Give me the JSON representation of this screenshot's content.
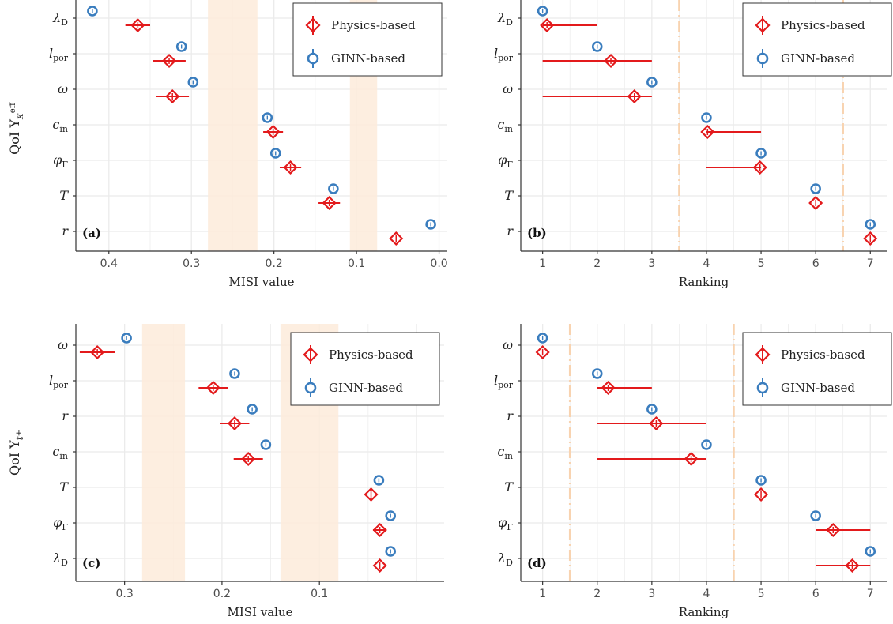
{
  "colors": {
    "physics": "#E31A1C",
    "ginn": "#3A7DBE",
    "band": "#FDEBDB",
    "cutoff": "#F8D3B0",
    "grid": "#EBEBEB",
    "axis": "#333333"
  },
  "legend": {
    "physics": "Physics-based",
    "ginn": "GINN-based"
  },
  "row_labels": {
    "top": "QoI Y",
    "top_sub": "κ",
    "top_sup": "eff",
    "bottom": "QoI Y",
    "bottom_sub": "t",
    "bottom_sub2": "+"
  },
  "chart_data": [
    {
      "panel": "(a)",
      "type": "scatter",
      "xlabel": "MISI value",
      "x_reversed": true,
      "xlim": [
        0.44,
        -0.01
      ],
      "xticks": [
        0.4,
        0.3,
        0.2,
        0.1,
        0.0
      ],
      "xtick_labels": [
        "0.4",
        "0.3",
        "0.2",
        "0.1",
        "0.0"
      ],
      "categories": [
        "λD",
        "lpor",
        "ω",
        "cin",
        "φΓ",
        "T",
        "r"
      ],
      "shaded_bands": [
        [
          0.22,
          0.28
        ],
        [
          0.075,
          0.108
        ]
      ],
      "series": [
        {
          "name": "Physics-based",
          "marker": "diamond",
          "values": [
            0.365,
            0.327,
            0.323,
            0.201,
            0.18,
            0.133,
            0.052
          ],
          "err_low": [
            0.35,
            0.307,
            0.303,
            0.189,
            0.167,
            0.12,
            0.052
          ],
          "err_high": [
            0.38,
            0.347,
            0.343,
            0.213,
            0.193,
            0.146,
            0.052
          ]
        },
        {
          "name": "GINN-based",
          "marker": "circle",
          "values": [
            0.42,
            0.312,
            0.298,
            0.208,
            0.198,
            0.128,
            0.01
          ]
        }
      ]
    },
    {
      "panel": "(b)",
      "type": "scatter",
      "xlabel": "Ranking",
      "x_reversed": false,
      "xlim": [
        0.6,
        7.3
      ],
      "xticks": [
        1,
        2,
        3,
        4,
        5,
        6,
        7
      ],
      "xtick_labels": [
        "1",
        "2",
        "3",
        "4",
        "5",
        "6",
        "7"
      ],
      "categories": [
        "λD",
        "lpor",
        "ω",
        "cin",
        "φΓ",
        "T",
        "r"
      ],
      "cutoffs": [
        3.5,
        6.5
      ],
      "series": [
        {
          "name": "Physics-based",
          "marker": "diamond",
          "values": [
            1.08,
            2.25,
            2.68,
            4.02,
            4.98,
            6.0,
            7.0
          ],
          "err_low": [
            1.0,
            1.0,
            1.0,
            4.0,
            4.0,
            6.0,
            7.0
          ],
          "err_high": [
            2.0,
            3.0,
            3.0,
            5.0,
            5.0,
            6.0,
            7.0
          ]
        },
        {
          "name": "GINN-based",
          "marker": "circle",
          "values": [
            1,
            2,
            3,
            4,
            5,
            6,
            7
          ]
        }
      ]
    },
    {
      "panel": "(c)",
      "type": "scatter",
      "xlabel": "MISI value",
      "x_reversed": true,
      "xlim": [
        0.35,
        -0.028
      ],
      "xticks": [
        0.3,
        0.2,
        0.1
      ],
      "xtick_labels": [
        "0.3",
        "0.2",
        "0.1"
      ],
      "categories": [
        "ω",
        "lpor",
        "r",
        "cin",
        "T",
        "φΓ",
        "λD"
      ],
      "shaded_bands": [
        [
          0.238,
          0.282
        ],
        [
          0.0805,
          0.14
        ]
      ],
      "series": [
        {
          "name": "Physics-based",
          "marker": "diamond",
          "values": [
            0.328,
            0.209,
            0.187,
            0.173,
            0.047,
            0.038,
            0.038
          ],
          "err_low": [
            0.31,
            0.194,
            0.172,
            0.158,
            0.047,
            0.031,
            0.038
          ],
          "err_high": [
            0.346,
            0.224,
            0.202,
            0.188,
            0.047,
            0.045,
            0.038
          ]
        },
        {
          "name": "GINN-based",
          "marker": "circle",
          "values": [
            0.298,
            0.187,
            0.169,
            0.155,
            0.039,
            0.027,
            0.027
          ]
        }
      ]
    },
    {
      "panel": "(d)",
      "type": "scatter",
      "xlabel": "Ranking",
      "x_reversed": false,
      "xlim": [
        0.6,
        7.3
      ],
      "xticks": [
        1,
        2,
        3,
        4,
        5,
        6,
        7
      ],
      "xtick_labels": [
        "1",
        "2",
        "3",
        "4",
        "5",
        "6",
        "7"
      ],
      "categories": [
        "ω",
        "lpor",
        "r",
        "cin",
        "T",
        "φΓ",
        "λD"
      ],
      "cutoffs": [
        1.5,
        4.5
      ],
      "series": [
        {
          "name": "Physics-based",
          "marker": "diamond",
          "values": [
            1.0,
            2.2,
            3.08,
            3.72,
            5.0,
            6.32,
            6.67
          ],
          "err_low": [
            1.0,
            2.0,
            2.0,
            2.0,
            5.0,
            6.0,
            6.0
          ],
          "err_high": [
            1.0,
            3.0,
            4.0,
            4.0,
            5.0,
            7.0,
            7.0
          ]
        },
        {
          "name": "GINN-based",
          "marker": "circle",
          "values": [
            1,
            2,
            3,
            4,
            5,
            6,
            7
          ]
        }
      ]
    }
  ]
}
